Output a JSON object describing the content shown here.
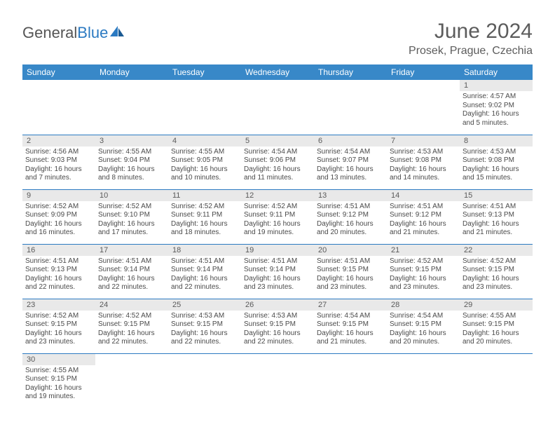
{
  "brand": {
    "general": "General",
    "blue": "Blue"
  },
  "title": "June 2024",
  "location": "Prosek, Prague, Czechia",
  "colors": {
    "header_bg": "#3888c8",
    "header_text": "#ffffff",
    "rule": "#2b7ac2",
    "daynum_bg": "#e9e9e9",
    "text": "#5a5a5a"
  },
  "weekdays": [
    "Sunday",
    "Monday",
    "Tuesday",
    "Wednesday",
    "Thursday",
    "Friday",
    "Saturday"
  ],
  "weeks": [
    [
      null,
      null,
      null,
      null,
      null,
      null,
      {
        "n": "1",
        "sr": "Sunrise: 4:57 AM",
        "ss": "Sunset: 9:02 PM",
        "dl": "Daylight: 16 hours and 5 minutes."
      }
    ],
    [
      {
        "n": "2",
        "sr": "Sunrise: 4:56 AM",
        "ss": "Sunset: 9:03 PM",
        "dl": "Daylight: 16 hours and 7 minutes."
      },
      {
        "n": "3",
        "sr": "Sunrise: 4:55 AM",
        "ss": "Sunset: 9:04 PM",
        "dl": "Daylight: 16 hours and 8 minutes."
      },
      {
        "n": "4",
        "sr": "Sunrise: 4:55 AM",
        "ss": "Sunset: 9:05 PM",
        "dl": "Daylight: 16 hours and 10 minutes."
      },
      {
        "n": "5",
        "sr": "Sunrise: 4:54 AM",
        "ss": "Sunset: 9:06 PM",
        "dl": "Daylight: 16 hours and 11 minutes."
      },
      {
        "n": "6",
        "sr": "Sunrise: 4:54 AM",
        "ss": "Sunset: 9:07 PM",
        "dl": "Daylight: 16 hours and 13 minutes."
      },
      {
        "n": "7",
        "sr": "Sunrise: 4:53 AM",
        "ss": "Sunset: 9:08 PM",
        "dl": "Daylight: 16 hours and 14 minutes."
      },
      {
        "n": "8",
        "sr": "Sunrise: 4:53 AM",
        "ss": "Sunset: 9:08 PM",
        "dl": "Daylight: 16 hours and 15 minutes."
      }
    ],
    [
      {
        "n": "9",
        "sr": "Sunrise: 4:52 AM",
        "ss": "Sunset: 9:09 PM",
        "dl": "Daylight: 16 hours and 16 minutes."
      },
      {
        "n": "10",
        "sr": "Sunrise: 4:52 AM",
        "ss": "Sunset: 9:10 PM",
        "dl": "Daylight: 16 hours and 17 minutes."
      },
      {
        "n": "11",
        "sr": "Sunrise: 4:52 AM",
        "ss": "Sunset: 9:11 PM",
        "dl": "Daylight: 16 hours and 18 minutes."
      },
      {
        "n": "12",
        "sr": "Sunrise: 4:52 AM",
        "ss": "Sunset: 9:11 PM",
        "dl": "Daylight: 16 hours and 19 minutes."
      },
      {
        "n": "13",
        "sr": "Sunrise: 4:51 AM",
        "ss": "Sunset: 9:12 PM",
        "dl": "Daylight: 16 hours and 20 minutes."
      },
      {
        "n": "14",
        "sr": "Sunrise: 4:51 AM",
        "ss": "Sunset: 9:12 PM",
        "dl": "Daylight: 16 hours and 21 minutes."
      },
      {
        "n": "15",
        "sr": "Sunrise: 4:51 AM",
        "ss": "Sunset: 9:13 PM",
        "dl": "Daylight: 16 hours and 21 minutes."
      }
    ],
    [
      {
        "n": "16",
        "sr": "Sunrise: 4:51 AM",
        "ss": "Sunset: 9:13 PM",
        "dl": "Daylight: 16 hours and 22 minutes."
      },
      {
        "n": "17",
        "sr": "Sunrise: 4:51 AM",
        "ss": "Sunset: 9:14 PM",
        "dl": "Daylight: 16 hours and 22 minutes."
      },
      {
        "n": "18",
        "sr": "Sunrise: 4:51 AM",
        "ss": "Sunset: 9:14 PM",
        "dl": "Daylight: 16 hours and 22 minutes."
      },
      {
        "n": "19",
        "sr": "Sunrise: 4:51 AM",
        "ss": "Sunset: 9:14 PM",
        "dl": "Daylight: 16 hours and 23 minutes."
      },
      {
        "n": "20",
        "sr": "Sunrise: 4:51 AM",
        "ss": "Sunset: 9:15 PM",
        "dl": "Daylight: 16 hours and 23 minutes."
      },
      {
        "n": "21",
        "sr": "Sunrise: 4:52 AM",
        "ss": "Sunset: 9:15 PM",
        "dl": "Daylight: 16 hours and 23 minutes."
      },
      {
        "n": "22",
        "sr": "Sunrise: 4:52 AM",
        "ss": "Sunset: 9:15 PM",
        "dl": "Daylight: 16 hours and 23 minutes."
      }
    ],
    [
      {
        "n": "23",
        "sr": "Sunrise: 4:52 AM",
        "ss": "Sunset: 9:15 PM",
        "dl": "Daylight: 16 hours and 23 minutes."
      },
      {
        "n": "24",
        "sr": "Sunrise: 4:52 AM",
        "ss": "Sunset: 9:15 PM",
        "dl": "Daylight: 16 hours and 22 minutes."
      },
      {
        "n": "25",
        "sr": "Sunrise: 4:53 AM",
        "ss": "Sunset: 9:15 PM",
        "dl": "Daylight: 16 hours and 22 minutes."
      },
      {
        "n": "26",
        "sr": "Sunrise: 4:53 AM",
        "ss": "Sunset: 9:15 PM",
        "dl": "Daylight: 16 hours and 22 minutes."
      },
      {
        "n": "27",
        "sr": "Sunrise: 4:54 AM",
        "ss": "Sunset: 9:15 PM",
        "dl": "Daylight: 16 hours and 21 minutes."
      },
      {
        "n": "28",
        "sr": "Sunrise: 4:54 AM",
        "ss": "Sunset: 9:15 PM",
        "dl": "Daylight: 16 hours and 20 minutes."
      },
      {
        "n": "29",
        "sr": "Sunrise: 4:55 AM",
        "ss": "Sunset: 9:15 PM",
        "dl": "Daylight: 16 hours and 20 minutes."
      }
    ],
    [
      {
        "n": "30",
        "sr": "Sunrise: 4:55 AM",
        "ss": "Sunset: 9:15 PM",
        "dl": "Daylight: 16 hours and 19 minutes."
      },
      null,
      null,
      null,
      null,
      null,
      null
    ]
  ]
}
